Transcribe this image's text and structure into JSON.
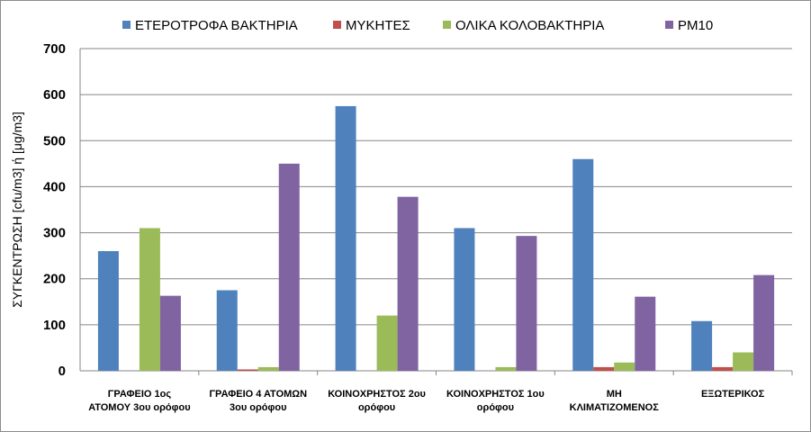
{
  "chart_data": {
    "type": "bar",
    "title": "",
    "xlabel": "",
    "ylabel": "ΣΥΓΚΕΝΤΡΩΣΗ [cfu/m3] ή [μg/m3]",
    "ylim": [
      0,
      700
    ],
    "yticks": [
      0,
      100,
      200,
      300,
      400,
      500,
      600,
      700
    ],
    "grid": true,
    "legend_position": "top",
    "categories": [
      [
        "ΓΡΑΦΕΙΟ 1ος",
        "ΑΤΟΜΟΥ 3ου ορόφου"
      ],
      [
        "ΓΡΑΦΕΙΟ 4 ΑΤΟΜΩΝ",
        "3ου ορόφου"
      ],
      [
        "ΚΟΙΝΟΧΡΗΣΤΟΣ 2ου",
        "ορόφου"
      ],
      [
        "ΚΟΙΝΟΧΡΗΣΤΟΣ 1ου",
        "ορόφου"
      ],
      [
        "ΜΗ",
        "ΚΛΙΜΑΤΙΖΟΜΕΝΟΣ"
      ],
      [
        "ΕΞΩΤΕΡΙΚΟΣ"
      ]
    ],
    "series": [
      {
        "name": "ΕΤΕΡΟΤΡΟΦΑ ΒΑΚΤΗΡΙΑ",
        "color": "#4f81bd",
        "values": [
          260,
          175,
          575,
          310,
          460,
          108
        ]
      },
      {
        "name": "ΜΥΚΗΤΕΣ",
        "color": "#c0504d",
        "values": [
          0,
          3,
          0,
          0,
          8,
          8
        ]
      },
      {
        "name": "ΟΛΙΚΑ ΚΟΛΟΒΑΚΤΗΡΙΑ",
        "color": "#9bbb59",
        "values": [
          310,
          8,
          120,
          8,
          18,
          40
        ]
      },
      {
        "name": "PM10",
        "color": "#8064a2",
        "values": [
          163,
          450,
          378,
          293,
          161,
          208
        ]
      }
    ]
  }
}
